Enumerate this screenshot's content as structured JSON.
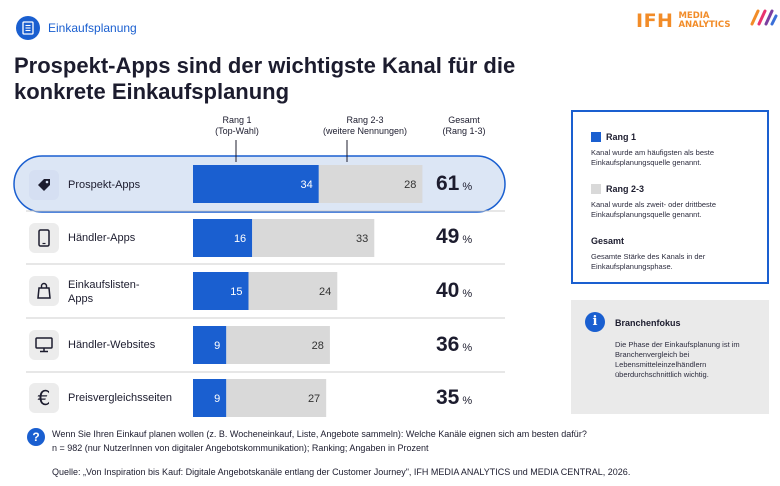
{
  "header": {
    "label": "Einkaufsplanung",
    "icon": "document-list-icon"
  },
  "logo": {
    "brand": "IFH",
    "line1": "MEDIA",
    "line2": "ANALYTICS"
  },
  "title": "Prospekt-Apps sind der wichtigste Kanal für die konkrete Einkaufsplanung",
  "columns": {
    "rang1": {
      "line1": "Rang 1",
      "line2": "(Top-Wahl)"
    },
    "rang23": {
      "line1": "Rang 2-3",
      "line2": "(weitere Nennungen)"
    },
    "gesamt": {
      "line1": "Gesamt",
      "line2": "(Rang 1-3)"
    }
  },
  "colors": {
    "rang1": "#1a5fd0",
    "rang23": "#d9d9d9",
    "highlight_bg": "#dce6f5",
    "highlight_border": "#1a5fd0"
  },
  "chart_data": {
    "type": "bar",
    "orientation": "horizontal",
    "stacked": true,
    "unit": "%",
    "categories": [
      "Prospekt-Apps",
      "Händler-Apps",
      "Einkaufslisten-Apps",
      "Händler-Websites",
      "Preisvergleichsseiten"
    ],
    "series": [
      {
        "name": "Rang 1",
        "values": [
          34,
          16,
          15,
          9,
          9
        ]
      },
      {
        "name": "Rang 2-3",
        "values": [
          28,
          33,
          24,
          28,
          27
        ]
      }
    ],
    "totals": [
      61,
      49,
      40,
      36,
      35
    ],
    "icons": [
      "price-tag-icon",
      "smartphone-icon",
      "shopping-bag-icon",
      "monitor-icon",
      "euro-icon"
    ],
    "highlighted_category": "Prospekt-Apps",
    "row_labels": [
      [
        "Prospekt-Apps"
      ],
      [
        "Händler-Apps"
      ],
      [
        "Einkaufslisten-",
        "Apps"
      ],
      [
        "Händler-Websites"
      ],
      [
        "Preisvergleichsseiten"
      ]
    ],
    "percent_sign": "%"
  },
  "legend": {
    "items": [
      {
        "name": "Rang 1",
        "desc1": "Kanal wurde am häufigsten als beste",
        "desc2": "Einkaufsplanungsquelle genannt."
      },
      {
        "name": "Rang 2-3",
        "desc1": "Kanal wurde als zweit- oder drittbeste",
        "desc2": "Einkaufsplanungsquelle genannt."
      },
      {
        "name": "Gesamt",
        "desc1": "Gesamte Stärke des Kanals in der",
        "desc2": "Einkaufsplanungsphase."
      }
    ]
  },
  "focus": {
    "icon": "info-icon",
    "title": "Branchenfokus",
    "text": "Die Phase der Einkaufsplanung ist im Branchenvergleich bei Lebensmitteleinzelhändlern überdurchschnittlich wichtig."
  },
  "footer": {
    "question": "Wenn Sie Ihren Einkauf planen wollen (z. B. Wocheneinkauf, Liste, Angebote sammeln): Welche Kanäle eignen sich am besten dafür?",
    "note": "n = 982 (nur NutzerInnen von digitaler Angebotskommunikation); Ranking; Angaben in Prozent",
    "source": "Quelle: „Von Inspiration bis Kauf: Digitale Angebotskanäle entlang der Customer Journey\", IFH MEDIA ANALYTICS und MEDIA CENTRAL, 2026."
  }
}
